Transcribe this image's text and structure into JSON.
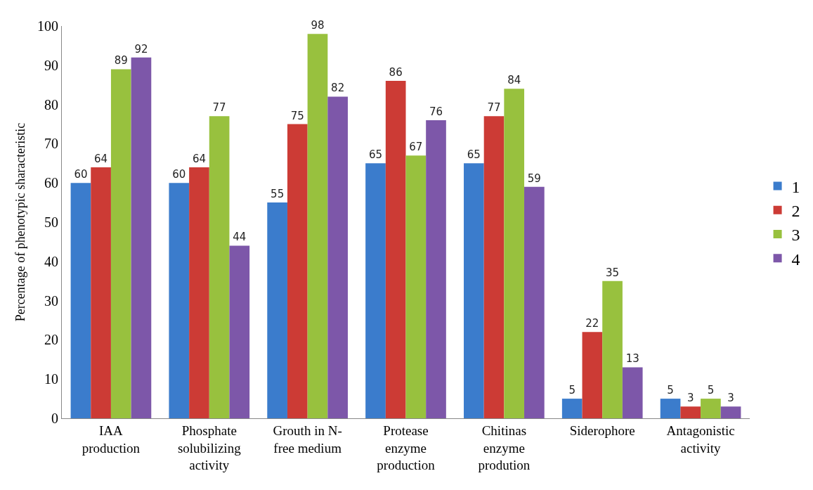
{
  "chart_data": {
    "type": "bar",
    "ylabel": "Percentage of phenotypic sharacteristic",
    "categories": [
      "IAA\nproduction",
      "Phosphate\nsolubilizing\nactivity",
      "Grouth in N-\nfree medium",
      "Protease\nenzyme\nproduction",
      "Chitinas\nenzyme\nprodution",
      "Siderophore",
      "Antagonistic\nactivity"
    ],
    "series": [
      {
        "name": "1",
        "color": "#3b7ccc",
        "values": [
          60,
          60,
          55,
          65,
          65,
          5,
          5
        ]
      },
      {
        "name": "2",
        "color": "#cc3b35",
        "values": [
          64,
          64,
          75,
          86,
          77,
          22,
          3
        ]
      },
      {
        "name": "3",
        "color": "#98c13e",
        "values": [
          89,
          77,
          98,
          67,
          84,
          35,
          5
        ]
      },
      {
        "name": "4",
        "color": "#7d57a9",
        "values": [
          92,
          44,
          82,
          76,
          59,
          13,
          3
        ]
      }
    ],
    "ylim": [
      0,
      100
    ],
    "yticks": [
      0,
      10,
      20,
      30,
      40,
      50,
      60,
      70,
      80,
      90,
      100
    ],
    "grid": false,
    "legend": "right",
    "data_labels": true
  }
}
